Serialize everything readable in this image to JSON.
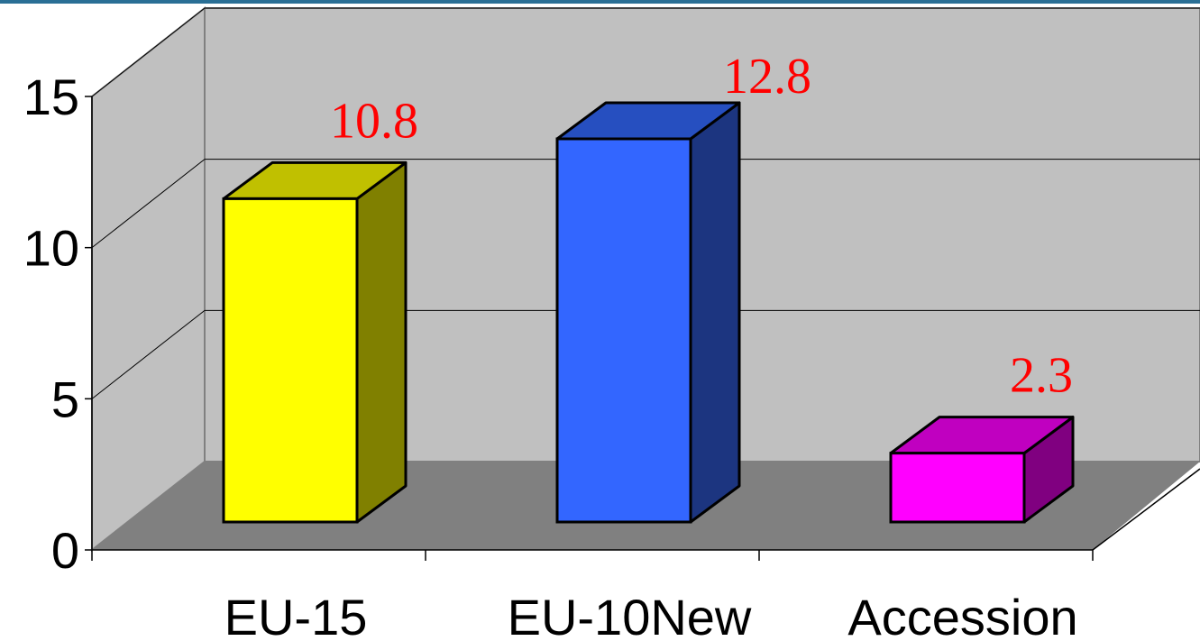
{
  "chart_data": {
    "type": "bar",
    "style": "3d-column",
    "categories": [
      "EU-15",
      "EU-10New",
      "Accession"
    ],
    "values": [
      10.8,
      12.8,
      2.3
    ],
    "value_labels": [
      "10.8",
      "12.8",
      "2.3"
    ],
    "ylim": [
      0,
      15
    ],
    "yticks": [
      0,
      5,
      10,
      15
    ],
    "ytick_labels": [
      "0",
      "5",
      "10",
      "15"
    ],
    "title": "",
    "xlabel": "",
    "ylabel": "",
    "grid": true,
    "legend": "none",
    "colors": {
      "bars": [
        "#ffff00",
        "#3366ff",
        "#ff00ff"
      ],
      "bar_tops": [
        "#c0c000",
        "#264fc0",
        "#c000c0"
      ],
      "bar_sides": [
        "#808000",
        "#1c3580",
        "#800080"
      ],
      "data_labels": "#ff0000",
      "back_wall": "#c0c0c0",
      "floor": "#808080",
      "top_rule": "#2a6f95"
    }
  }
}
